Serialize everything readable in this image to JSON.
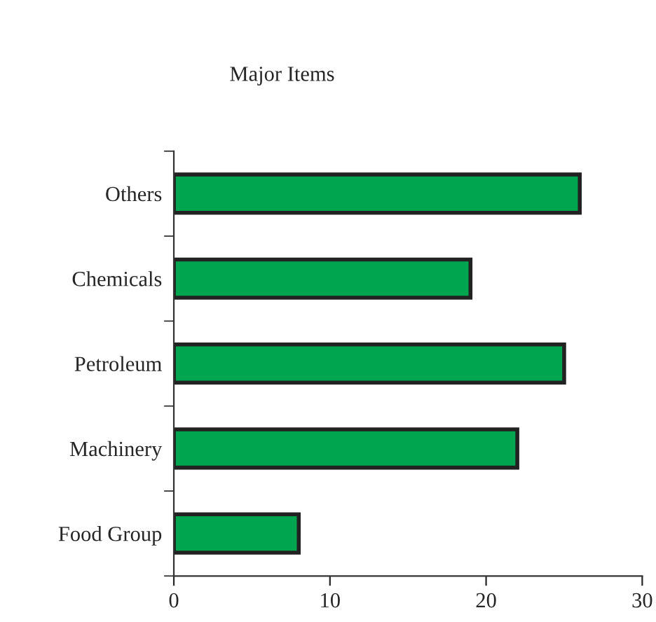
{
  "chart_data": {
    "type": "bar",
    "orientation": "horizontal",
    "title": "Major Items",
    "categories": [
      "Others",
      "Chemicals",
      "Petroleum",
      "Machinery",
      "Food Group"
    ],
    "values": [
      26,
      19,
      25,
      22,
      8
    ],
    "color": "#00a550",
    "xlim": [
      0,
      30
    ],
    "xticks": [
      0,
      10,
      20,
      30
    ],
    "grid": false,
    "legend": false
  }
}
